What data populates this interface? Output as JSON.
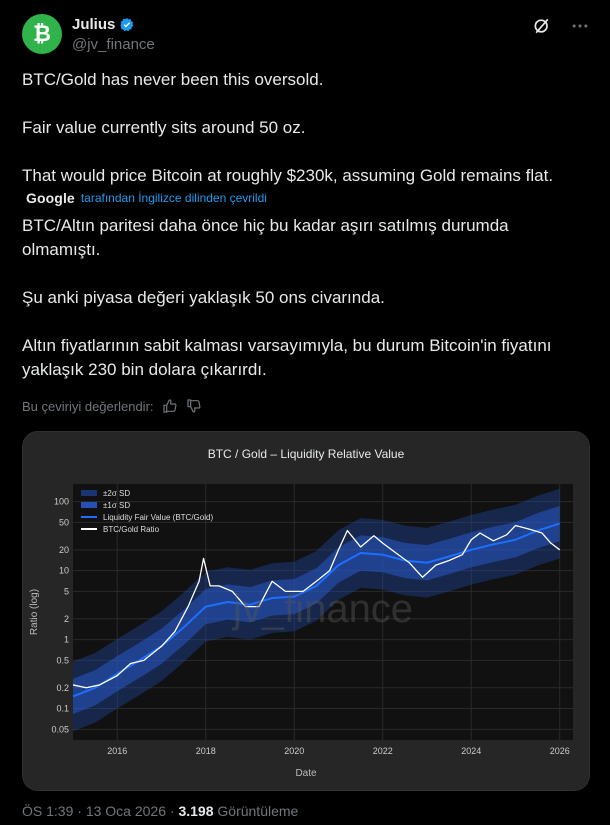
{
  "user": {
    "name": "Julius",
    "handle": "@jv_finance",
    "avatar_glyph": "₿"
  },
  "post": {
    "paragraphs": [
      "BTC/Gold has never been this oversold.",
      "Fair value currently sits around 50 oz.",
      "That would price Bitcoin at roughly $230k, assuming Gold remains flat."
    ],
    "translation_provider": "Google",
    "translation_label": "tarafından İngilizce dilinden çevrildi",
    "translated_paragraphs": [
      "BTC/Altın paritesi daha önce hiç bu kadar aşırı satılmış durumda olmamıştı.",
      "Şu anki piyasa değeri yaklaşık 50 ons civarında.",
      "Altın fiyatlarının sabit kalması varsayımıyla, bu durum Bitcoin'in fiyatını yaklaşık 230 bin dolara çıkarırdı."
    ],
    "rate_translation_label": "Bu çeviriyi değerlendir:"
  },
  "meta": {
    "time": "ÖS 1:39",
    "date": "13 Oca 2026",
    "views": "3.198",
    "views_label": "Görüntüleme"
  },
  "colors": {
    "accent": "#1d9bf0",
    "muted": "#71767b",
    "text": "#e7e9ea",
    "verified": "#1d9bf0",
    "avatar_bg": "#2fb34a"
  },
  "icons": {
    "verified": "verified-badge-icon",
    "grok": "grok-icon",
    "more": "more-icon",
    "thumbs_up": "thumbs-up-icon",
    "thumbs_down": "thumbs-down-icon"
  },
  "chart_data": {
    "type": "line",
    "title": "BTC / Gold – Liquidity Relative Value",
    "xlabel": "Date",
    "ylabel": "Ratio (log)",
    "xlim": [
      2015.0,
      2026.3
    ],
    "ylim": [
      0.035,
      180
    ],
    "yscale": "log",
    "xticks": [
      2016,
      2018,
      2020,
      2022,
      2024,
      2026
    ],
    "yticks": [
      0.05,
      0.1,
      0.2,
      0.5,
      1,
      2,
      5,
      10,
      20,
      50,
      100
    ],
    "ytick_labels": [
      "0.05",
      "0.1",
      "0.2",
      "0.5",
      "1",
      "2",
      "5",
      "10",
      "20",
      "50",
      "100"
    ],
    "watermark": "jv_finance",
    "grid": true,
    "legend_position": "top-left",
    "series": [
      {
        "name": "±2σ SD",
        "kind": "band2"
      },
      {
        "name": "±1σ SD",
        "kind": "band1"
      },
      {
        "name": "Liquidity Fair Value (BTC/Gold)",
        "kind": "line",
        "color": "#1f6fff",
        "x": [
          2015.0,
          2015.5,
          2016.0,
          2016.5,
          2017.0,
          2017.5,
          2018.0,
          2018.5,
          2019.0,
          2019.5,
          2020.0,
          2020.5,
          2021.0,
          2021.5,
          2022.0,
          2022.5,
          2023.0,
          2023.5,
          2024.0,
          2024.5,
          2025.0,
          2025.5,
          2026.0
        ],
        "y": [
          0.15,
          0.2,
          0.32,
          0.5,
          0.8,
          1.5,
          3.0,
          3.5,
          3.2,
          4.0,
          4.2,
          6.0,
          12,
          18,
          17,
          14,
          13,
          16,
          20,
          24,
          28,
          38,
          48
        ]
      },
      {
        "name": "BTC/Gold Ratio",
        "kind": "line",
        "color": "#ffffff",
        "x": [
          2015.0,
          2015.3,
          2015.6,
          2016.0,
          2016.3,
          2016.6,
          2017.0,
          2017.3,
          2017.6,
          2017.85,
          2017.95,
          2018.1,
          2018.3,
          2018.6,
          2018.9,
          2019.2,
          2019.5,
          2019.8,
          2020.2,
          2020.5,
          2020.8,
          2021.0,
          2021.2,
          2021.5,
          2021.8,
          2022.0,
          2022.3,
          2022.6,
          2022.9,
          2023.2,
          2023.5,
          2023.8,
          2024.0,
          2024.2,
          2024.5,
          2024.8,
          2025.0,
          2025.3,
          2025.6,
          2025.8,
          2026.0
        ],
        "y": [
          0.22,
          0.2,
          0.22,
          0.3,
          0.45,
          0.5,
          0.8,
          1.3,
          3.0,
          7.0,
          15.0,
          6.0,
          6.0,
          5.0,
          3.0,
          3.0,
          7.0,
          5.0,
          5.0,
          7.0,
          10.0,
          20.0,
          38.0,
          22.0,
          32.0,
          25.0,
          18.0,
          13.0,
          8.0,
          12.0,
          14.0,
          17.0,
          28.0,
          35.0,
          27.0,
          33.0,
          45.0,
          40.0,
          35.0,
          25.0,
          20.0
        ]
      }
    ]
  }
}
